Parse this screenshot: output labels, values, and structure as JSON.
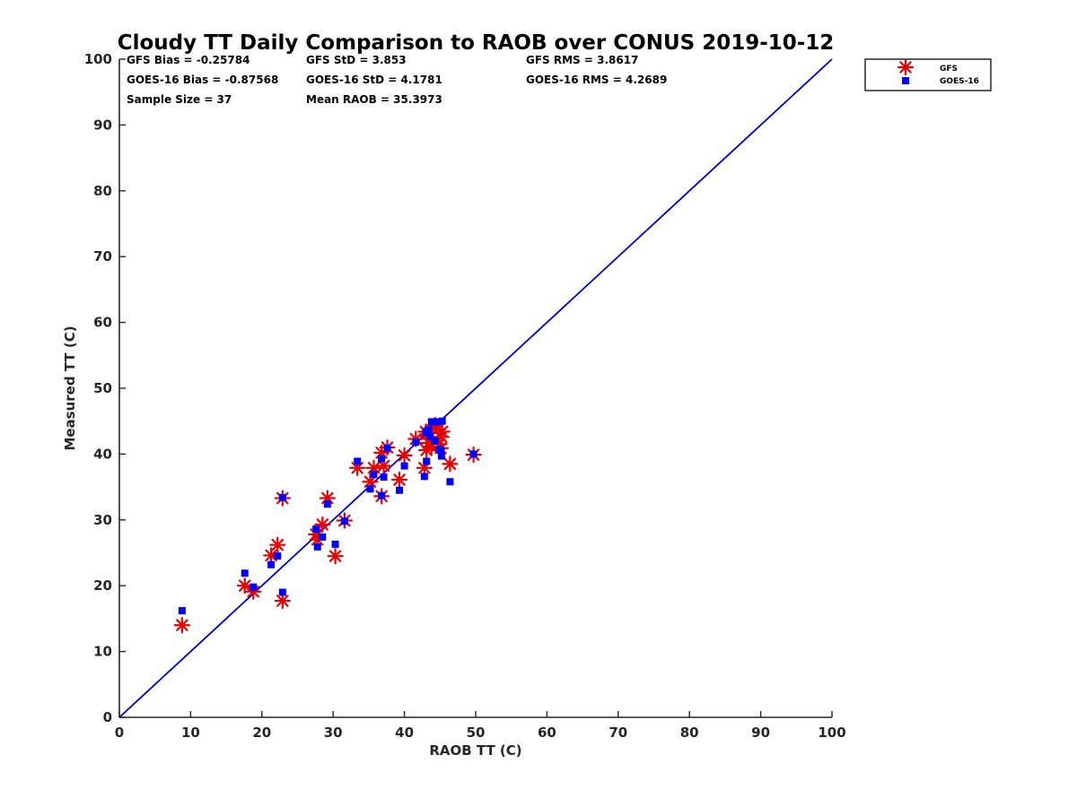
{
  "chart_data": {
    "type": "scatter",
    "title": "Cloudy TT Daily Comparison to RAOB over CONUS 2019-10-12",
    "xlabel": "RAOB TT (C)",
    "ylabel": "Measured TT (C)",
    "xlim": [
      0,
      100
    ],
    "ylim": [
      0,
      100
    ],
    "xticks": [
      "0",
      "10",
      "20",
      "30",
      "40",
      "50",
      "60",
      "70",
      "80",
      "90",
      "100"
    ],
    "yticks": [
      "0",
      "10",
      "20",
      "30",
      "40",
      "50",
      "60",
      "70",
      "80",
      "90",
      "100"
    ],
    "grid": false,
    "legend_position": "top-right outside",
    "stats": [
      "GFS Bias = -0.25784",
      "GFS StD = 3.853",
      "GFS RMS = 3.8617",
      "GOES-16 Bias = -0.87568",
      "GOES-16 StD = 4.1781",
      "GOES-16 RMS = 4.2689",
      "Sample Size = 37",
      "Mean RAOB = 35.3973"
    ],
    "reference_line": {
      "x": [
        0,
        100
      ],
      "y": [
        0,
        100
      ],
      "color": "#0000cc"
    },
    "series": [
      {
        "name": "GFS",
        "marker": "asterisk",
        "color": "#e60000",
        "x": [
          8.8,
          17.6,
          18.8,
          21.3,
          22.2,
          22.9,
          22.9,
          27.6,
          27.8,
          28.5,
          29.2,
          30.3,
          31.6,
          33.4,
          35.2,
          35.7,
          36.8,
          36.8,
          37.1,
          37.6,
          39.3,
          40.0,
          41.6,
          42.8,
          43.0,
          43.1,
          43.4,
          43.6,
          43.8,
          44.3,
          44.7,
          44.9,
          45.1,
          45.2,
          45.3,
          46.4,
          49.7
        ],
        "y": [
          14.0,
          20.0,
          19.1,
          24.6,
          26.2,
          17.7,
          33.3,
          27.8,
          27.0,
          29.3,
          33.3,
          24.5,
          29.9,
          37.9,
          35.8,
          37.9,
          40.2,
          33.6,
          38.2,
          41.0,
          36.1,
          39.8,
          42.3,
          37.9,
          43.4,
          40.6,
          41.7,
          43.2,
          41.1,
          44.4,
          43.8,
          41.5,
          40.9,
          42.6,
          43.4,
          38.5,
          39.9
        ]
      },
      {
        "name": "GOES-16",
        "marker": "square",
        "color": "#0000ff",
        "x": [
          8.8,
          17.6,
          18.8,
          21.3,
          22.2,
          22.9,
          22.9,
          27.6,
          27.8,
          28.5,
          29.2,
          30.3,
          31.6,
          33.4,
          35.2,
          35.7,
          36.8,
          36.8,
          37.1,
          37.6,
          39.3,
          40.0,
          41.6,
          42.8,
          43.0,
          43.1,
          43.4,
          43.6,
          43.8,
          44.3,
          44.7,
          44.9,
          45.1,
          45.2,
          45.3,
          46.4,
          49.7
        ],
        "y": [
          16.2,
          21.9,
          19.8,
          23.2,
          24.5,
          19.0,
          33.4,
          28.6,
          25.9,
          27.4,
          32.4,
          26.3,
          29.8,
          38.9,
          34.7,
          36.9,
          39.3,
          33.7,
          36.5,
          40.9,
          34.5,
          38.2,
          41.8,
          36.6,
          43.4,
          38.9,
          43.7,
          42.7,
          44.9,
          42.0,
          44.9,
          40.7,
          40.6,
          39.7,
          45.0,
          35.8,
          40.0
        ]
      }
    ]
  }
}
